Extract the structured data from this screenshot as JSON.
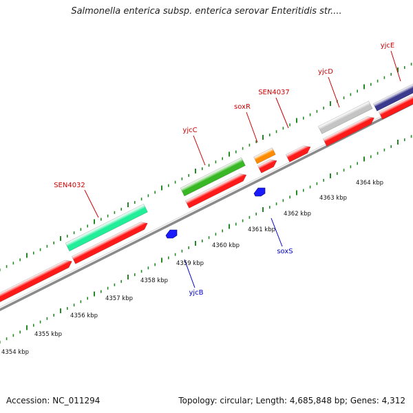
{
  "header": {
    "title": "Salmonella enterica subsp. enterica serovar Enteritidis str...."
  },
  "footer": {
    "accession": "Accession: NC_011294",
    "summary": "Topology: circular; Length: 4,685,848 bp; Genes: 4,312"
  },
  "map": {
    "backbone_color": "#8a8a8a",
    "feature_colors": {
      "cds": "#ff1a1a",
      "sen4032": "#22ee9a",
      "yjcc": "#38b824",
      "soxr": "#ff8c00",
      "yjcd": "#c4c4c4",
      "yjce": "#3c3a8c",
      "reverse": "#1a1aff",
      "label_fwd": "#cc0000",
      "label_rev": "#0000cc",
      "tick": "#228b22"
    },
    "forward_genes": [
      {
        "id": "sen4032",
        "label": "SEN4032"
      },
      {
        "id": "yjcc",
        "label": "yjcC"
      },
      {
        "id": "soxr",
        "label": "soxR"
      },
      {
        "id": "sen4037",
        "label": "SEN4037"
      },
      {
        "id": "yjcd",
        "label": "yjcD"
      },
      {
        "id": "yjce",
        "label": "yjcE"
      }
    ],
    "reverse_genes": [
      {
        "id": "yjcb",
        "label": "yjcB"
      },
      {
        "id": "soxs",
        "label": "soxS"
      }
    ],
    "scale_labels": [
      "4354 kbp",
      "4355 kbp",
      "4356 kbp",
      "4357 kbp",
      "4358 kbp",
      "4359 kbp",
      "4360 kbp",
      "4361 kbp",
      "4362 kbp",
      "4363 kbp",
      "4364 kbp"
    ]
  }
}
